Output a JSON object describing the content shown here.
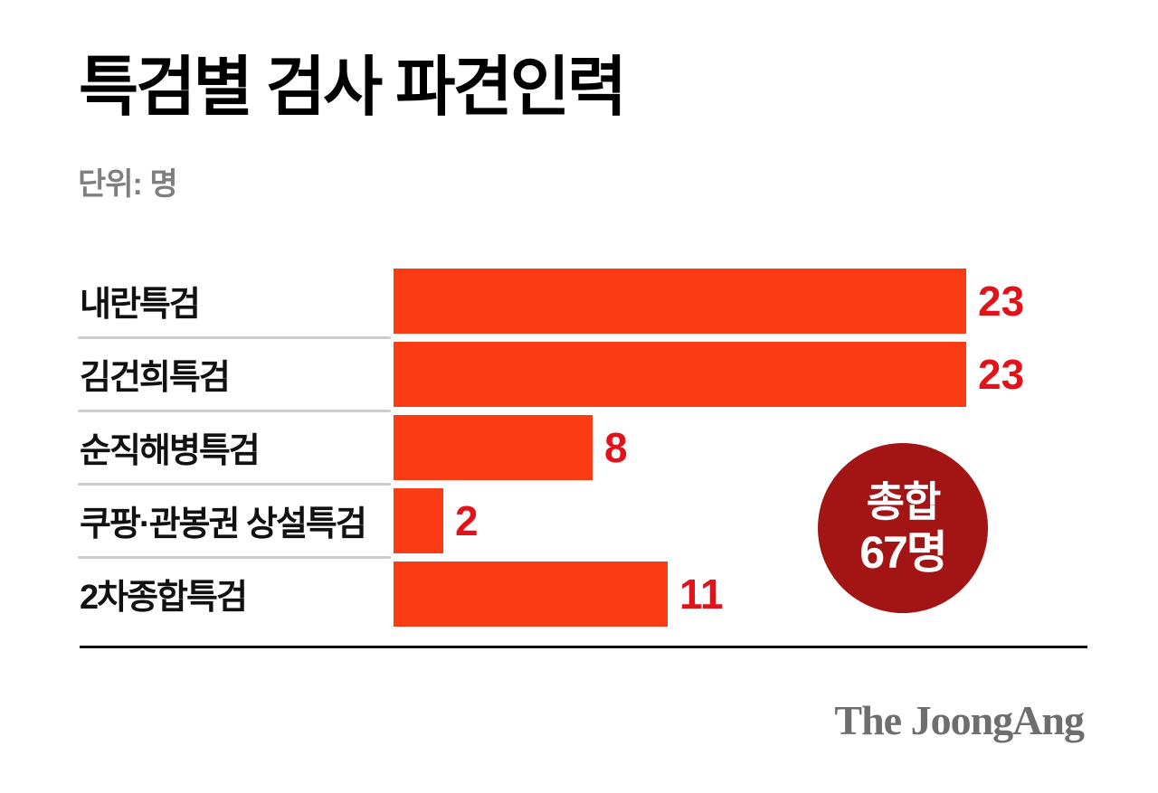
{
  "title": "특검별 검사 파견인력",
  "unit_label": "단위: 명",
  "chart_data": {
    "type": "bar",
    "orientation": "horizontal",
    "title": "특검별 검사 파견인력",
    "unit": "명",
    "categories": [
      "내란특검",
      "김건희특검",
      "순직해병특검",
      "쿠팡·관봉권 상설특검",
      "2차종합특검"
    ],
    "values": [
      23,
      23,
      8,
      2,
      11
    ],
    "xlim": [
      0,
      23
    ],
    "grid": false,
    "value_labels_shown": true,
    "bar_color": "#FA3B14",
    "value_label_color": "#E1121A",
    "separator_color": "#CCCCCC"
  },
  "total_badge": {
    "label": "총합",
    "value": "67명",
    "bg_color": "#A31415",
    "text_color": "#FFFFFF"
  },
  "footer": {
    "logo_text": "The JoongAng",
    "logo_color": "#6E6E6E"
  }
}
